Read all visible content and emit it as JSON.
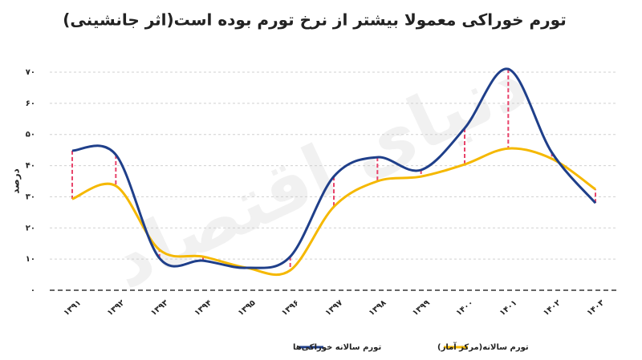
{
  "chart_data": {
    "type": "line",
    "title": "تورم خوراکی معمولا بیشتر از نرخ تورم بوده است(اثر جانشینی)",
    "watermark": "دنیای اقتصاد",
    "y_label": "درصد",
    "categories": [
      "۱۳۹۱",
      "۱۳۹۲",
      "۱۳۹۳",
      "۱۳۹۴",
      "۱۳۹۵",
      "۱۳۹۶",
      "۱۳۹۷",
      "۱۳۹۸",
      "۱۳۹۹",
      "۱۴۰۰",
      "۱۴۰۱",
      "۱۴۰۲",
      "۱۴۰۳"
    ],
    "series": [
      {
        "name": "تورم سالانه خوراکی‌ها",
        "color": "#1f3f8a",
        "values": [
          44.8,
          43.5,
          10.3,
          9.5,
          7.2,
          10.8,
          36.5,
          42.7,
          38.6,
          52,
          71,
          44.2,
          28
        ]
      },
      {
        "name": "تورم سالانه(مرکز آمار)",
        "color": "#f5b800",
        "values": [
          29.3,
          33.5,
          13,
          10.8,
          7.2,
          6.4,
          26.8,
          35,
          36.5,
          40.4,
          45.5,
          42.2,
          32.4
        ]
      }
    ],
    "gap_color": "#e8436a",
    "ylim": [
      0,
      70
    ],
    "yticks": [
      {
        "value": 0,
        "label": "۰"
      },
      {
        "value": 10,
        "label": "۱۰"
      },
      {
        "value": 20,
        "label": "۲۰"
      },
      {
        "value": 30,
        "label": "۳۰"
      },
      {
        "value": 40,
        "label": "۴۰"
      },
      {
        "value": 50,
        "label": "۵۰"
      },
      {
        "value": 60,
        "label": "۶۰"
      },
      {
        "value": 70,
        "label": "۷۰"
      }
    ],
    "grid": true
  }
}
